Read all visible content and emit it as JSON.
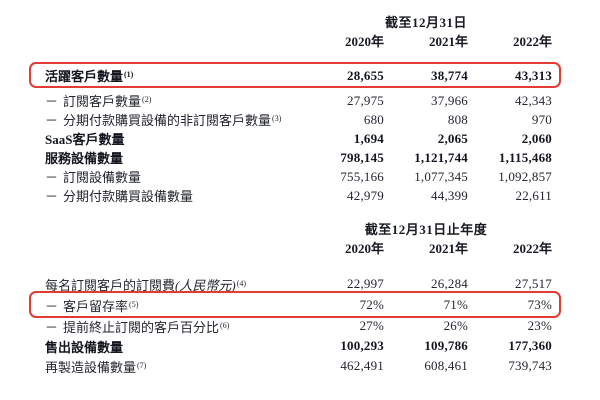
{
  "colors": {
    "highlight_red": "#e03c34",
    "text": "#23262e",
    "background": "#ffffff"
  },
  "tables": [
    {
      "period_header": "截至12月31日",
      "years": [
        "2020年",
        "2021年",
        "2022年"
      ],
      "rows": [
        {
          "dash": "",
          "label": "活躍客戶數量",
          "sup": "(1)",
          "values": [
            "28,655",
            "38,774",
            "43,313"
          ],
          "bold": true,
          "boxed": true
        },
        {
          "dash": "－",
          "label": "訂閱客戶數量",
          "sup": "(2)",
          "values": [
            "27,975",
            "37,966",
            "42,343"
          ],
          "bold": false,
          "boxed": false
        },
        {
          "dash": "－",
          "label": "分期付款購買設備的非訂閱客戶數量",
          "sup": "(3)",
          "values": [
            "680",
            "808",
            "970"
          ],
          "bold": false,
          "boxed": false
        },
        {
          "dash": "",
          "label": "SaaS客戶數量",
          "sup": "",
          "values": [
            "1,694",
            "2,065",
            "2,060"
          ],
          "bold": true,
          "boxed": false
        },
        {
          "dash": "",
          "label": "服務設備數量",
          "sup": "",
          "values": [
            "798,145",
            "1,121,744",
            "1,115,468"
          ],
          "bold": true,
          "boxed": false
        },
        {
          "dash": "－",
          "label": "訂閱設備數量",
          "sup": "",
          "values": [
            "755,166",
            "1,077,345",
            "1,092,857"
          ],
          "bold": false,
          "boxed": false
        },
        {
          "dash": "－",
          "label": "分期付款購買設備數量",
          "sup": "",
          "values": [
            "42,979",
            "44,399",
            "22,611"
          ],
          "bold": false,
          "boxed": false
        }
      ]
    },
    {
      "period_header": "截至12月31日止年度",
      "years": [
        "2020年",
        "2021年",
        "2022年"
      ],
      "rows": [
        {
          "dash": "",
          "label": "每名訂閱客戶的訂閱費",
          "label_italic": "(人民幣元)",
          "sup": "(4)",
          "values": [
            "22,997",
            "26,284",
            "27,517"
          ],
          "bold": false,
          "boxed": false
        },
        {
          "dash": "－",
          "label": "客戶留存率",
          "sup": "(5)",
          "values": [
            "72%",
            "71%",
            "73%"
          ],
          "bold": false,
          "boxed": true
        },
        {
          "dash": "－",
          "label": "提前終止訂閱的客戶百分比",
          "sup": "(6)",
          "values": [
            "27%",
            "26%",
            "23%"
          ],
          "bold": false,
          "boxed": false
        },
        {
          "dash": "",
          "label": "售出設備數量",
          "sup": "",
          "values": [
            "100,293",
            "109,786",
            "177,360"
          ],
          "bold": true,
          "boxed": false
        },
        {
          "dash": "",
          "label": "再製造設備數量",
          "sup": "(7)",
          "values": [
            "462,491",
            "608,461",
            "739,743"
          ],
          "bold": false,
          "boxed": false
        }
      ]
    }
  ]
}
